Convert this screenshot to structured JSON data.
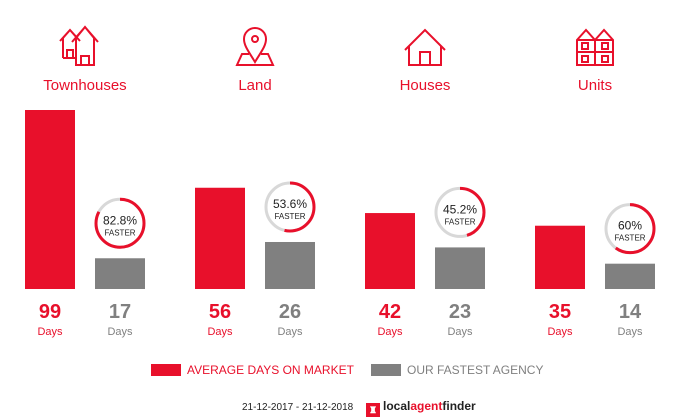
{
  "colors": {
    "market": "#e8102b",
    "agency": "#808080",
    "ring_bg": "#d8d8d8"
  },
  "chart_data": {
    "type": "bar",
    "categories": [
      "Townhouses",
      "Land",
      "Houses",
      "Units"
    ],
    "icons": [
      "townhouse-icon",
      "map-pin-icon",
      "house-icon",
      "units-icon"
    ],
    "series": [
      {
        "name": "AVERAGE DAYS ON MARKET",
        "values": [
          99,
          56,
          42,
          35
        ]
      },
      {
        "name": "OUR FASTEST AGENCY",
        "values": [
          17,
          26,
          23,
          14
        ]
      }
    ],
    "faster_pct": [
      82.8,
      53.6,
      45.2,
      60
    ],
    "faster_labels": [
      "82.8%",
      "53.6%",
      "45.2%",
      "60%"
    ],
    "faster_word": "FASTER",
    "unit_label": "Days",
    "ylim": [
      0,
      99
    ]
  },
  "legend": {
    "market": "AVERAGE DAYS ON MARKET",
    "agency": "OUR FASTEST AGENCY"
  },
  "footer": {
    "date_range": "21-12-2017 - 21-12-2018",
    "brand_local": "local",
    "brand_agent": "agent",
    "brand_finder": "finder"
  }
}
